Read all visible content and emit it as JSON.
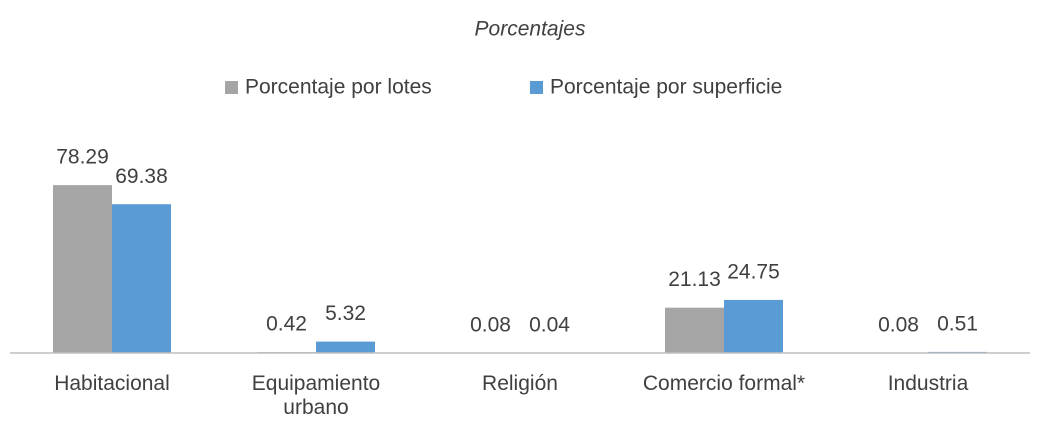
{
  "chart_data": {
    "type": "bar",
    "title": "Porcentajes",
    "categories": [
      "Habitacional",
      "Equipamiento urbano",
      "Religión",
      "Comercio formal*",
      "Industria"
    ],
    "series": [
      {
        "name": "Porcentaje por lotes",
        "color": "#a5a5a5",
        "values": [
          78.29,
          0.42,
          0.08,
          21.13,
          0.08
        ]
      },
      {
        "name": "Porcentaje por superficie",
        "color": "#5b9bd5",
        "values": [
          69.38,
          5.32,
          0.04,
          24.75,
          0.51
        ]
      }
    ],
    "ylim": [
      0,
      90
    ],
    "legend": "top"
  }
}
